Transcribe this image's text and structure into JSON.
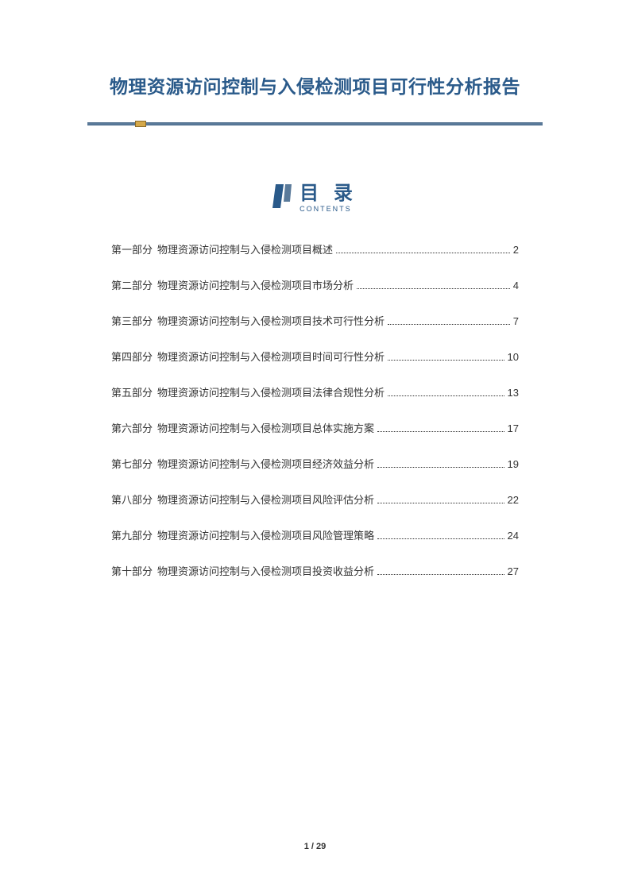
{
  "title": "物理资源访问控制与入侵检测项目可行性分析报告",
  "toc_heading": "目 录",
  "toc_subheading": "CONTENTS",
  "colors": {
    "title_color": "#2a5a8a",
    "divider_color": "#5a7a9a",
    "accent_color": "#d4a84a",
    "text_color": "#333333",
    "background": "#ffffff"
  },
  "toc": [
    {
      "part": "第一部分",
      "label": "物理资源访问控制与入侵检测项目概述",
      "page": "2"
    },
    {
      "part": "第二部分",
      "label": "物理资源访问控制与入侵检测项目市场分析",
      "page": "4"
    },
    {
      "part": "第三部分",
      "label": "物理资源访问控制与入侵检测项目技术可行性分析",
      "page": "7"
    },
    {
      "part": "第四部分",
      "label": "物理资源访问控制与入侵检测项目时间可行性分析",
      "page": "10"
    },
    {
      "part": "第五部分",
      "label": "物理资源访问控制与入侵检测项目法律合规性分析",
      "page": "13"
    },
    {
      "part": "第六部分",
      "label": "物理资源访问控制与入侵检测项目总体实施方案",
      "page": "17"
    },
    {
      "part": "第七部分",
      "label": "物理资源访问控制与入侵检测项目经济效益分析",
      "page": "19"
    },
    {
      "part": "第八部分",
      "label": "物理资源访问控制与入侵检测项目风险评估分析",
      "page": "22"
    },
    {
      "part": "第九部分",
      "label": "物理资源访问控制与入侵检测项目风险管理策略",
      "page": "24"
    },
    {
      "part": "第十部分",
      "label": "物理资源访问控制与入侵检测项目投资收益分析",
      "page": "27"
    }
  ],
  "footer": "1 / 29"
}
